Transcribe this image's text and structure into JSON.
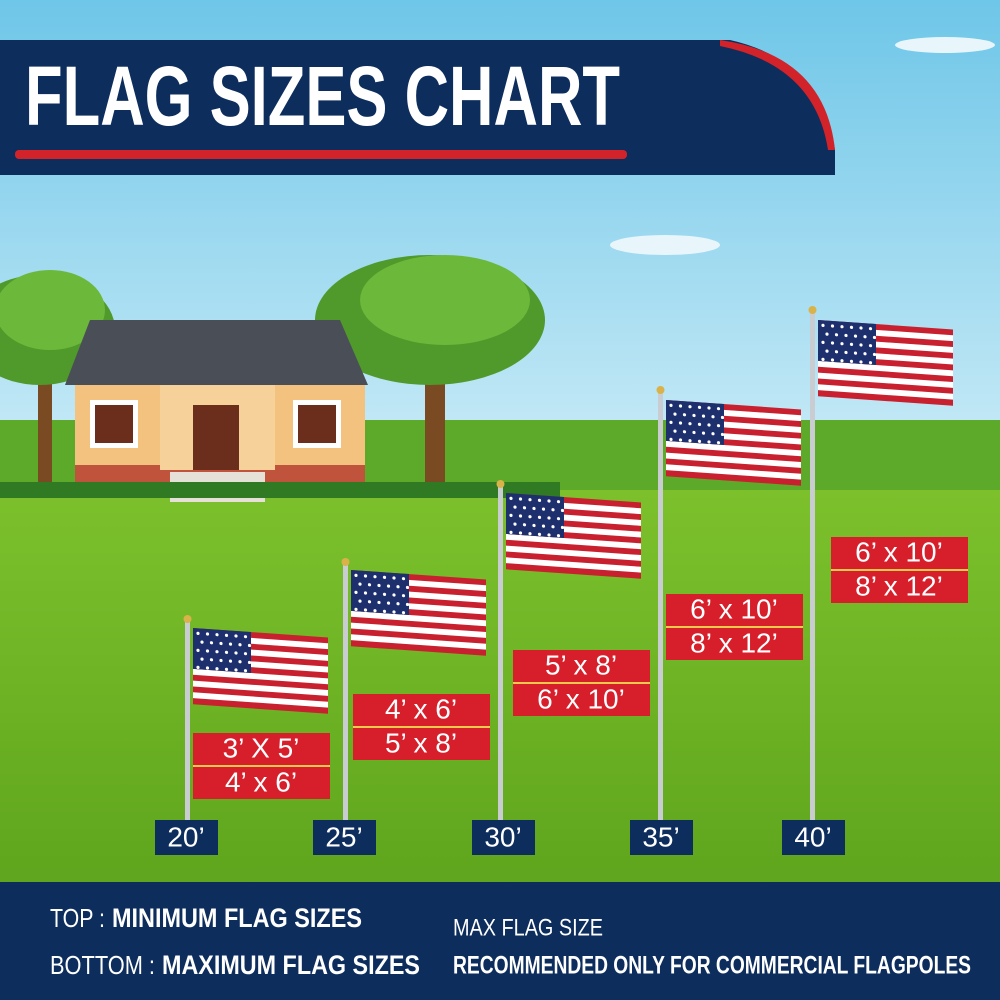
{
  "header": {
    "title": "FLAG SIZES CHART"
  },
  "poles": [
    {
      "height": "20’",
      "min_size": "3’ X 5’",
      "max_size": "4’ x 6’"
    },
    {
      "height": "25’",
      "min_size": "4’ x 6’",
      "max_size": "5’ x 8’"
    },
    {
      "height": "30’",
      "min_size": "5’ x 8’",
      "max_size": "6’ x 10’"
    },
    {
      "height": "35’",
      "min_size": "6’ x 10’",
      "max_size": "8’ x 12’"
    },
    {
      "height": "40’",
      "min_size": "6’ x 10’",
      "max_size": "8’ x 12’"
    }
  ],
  "legend": {
    "top_label": "TOP :",
    "top_text": "MINIMUM FLAG SIZES",
    "bottom_label": "BOTTOM :",
    "bottom_text": "MAXIMUM FLAG SIZES",
    "note_label": "MAX FLAG SIZE",
    "note_text": "RECOMMENDED ONLY FOR COMMERCIAL FLAGPOLES"
  }
}
